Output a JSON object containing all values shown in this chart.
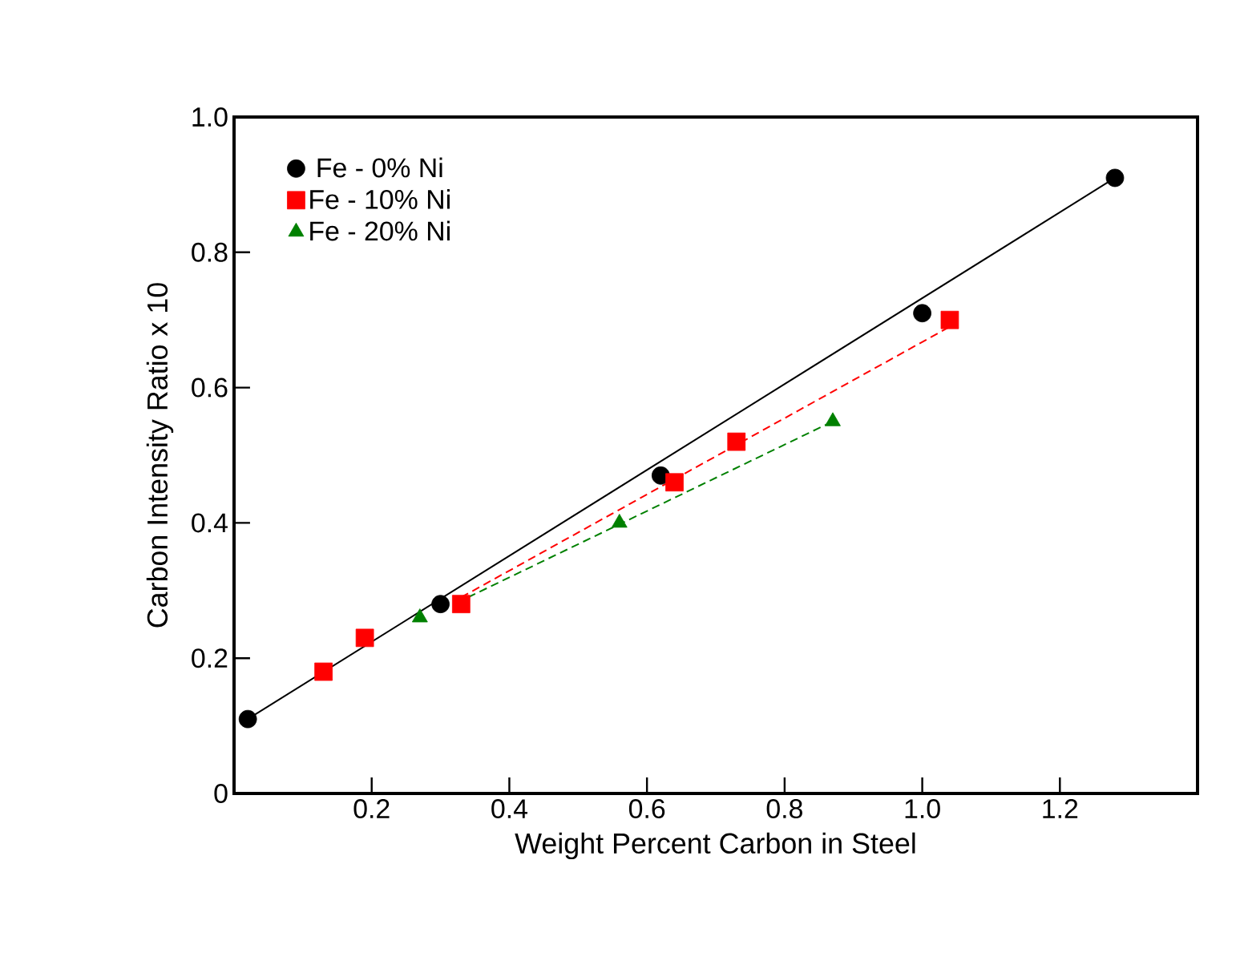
{
  "chart_data": {
    "type": "scatter",
    "xlabel": "Weight Percent Carbon in Steel",
    "ylabel": "Carbon Intensity Ratio x 10",
    "xlim": [
      0,
      1.4
    ],
    "ylim": [
      0,
      1.0
    ],
    "xticks": [
      0.2,
      0.4,
      0.6,
      0.8,
      {
        "value": 1,
        "label": "1.0"
      },
      1.2
    ],
    "yticks": [
      0,
      0.2,
      0.4,
      0.6,
      0.8,
      {
        "value": 1,
        "label": "1.0"
      }
    ],
    "legend": "top left",
    "grid": false,
    "series": [
      {
        "name": "Fe - 0% Ni",
        "marker": "circle",
        "color": "#000000",
        "x": [
          0.02,
          0.3,
          0.62,
          1.0,
          1.28
        ],
        "values": [
          0.11,
          0.28,
          0.47,
          0.71,
          0.91
        ]
      },
      {
        "name": "Fe - 10% Ni",
        "marker": "square",
        "color": "#ff0000",
        "x": [
          0.13,
          0.19,
          0.33,
          0.64,
          0.73,
          1.04
        ],
        "values": [
          0.18,
          0.23,
          0.28,
          0.46,
          0.52,
          0.7
        ]
      },
      {
        "name": "Fe - 20% Ni",
        "marker": "triangle",
        "color": "#008000",
        "x": [
          0.27,
          0.56,
          0.87
        ],
        "values": [
          0.26,
          0.4,
          0.55
        ]
      },
      {
        "type": "line",
        "line_style": "solid",
        "color": "#000000",
        "x": [
          0.02,
          1.28
        ],
        "values": [
          0.11,
          0.91
        ]
      },
      {
        "type": "line",
        "line_style": "dashed",
        "color": "#ff0000",
        "x": [
          0.33,
          1.04
        ],
        "values": [
          0.29,
          0.69
        ]
      },
      {
        "type": "line",
        "line_style": "dashed",
        "color": "#008000",
        "x": [
          0.34,
          0.87
        ],
        "values": [
          0.29,
          0.55
        ]
      }
    ]
  }
}
